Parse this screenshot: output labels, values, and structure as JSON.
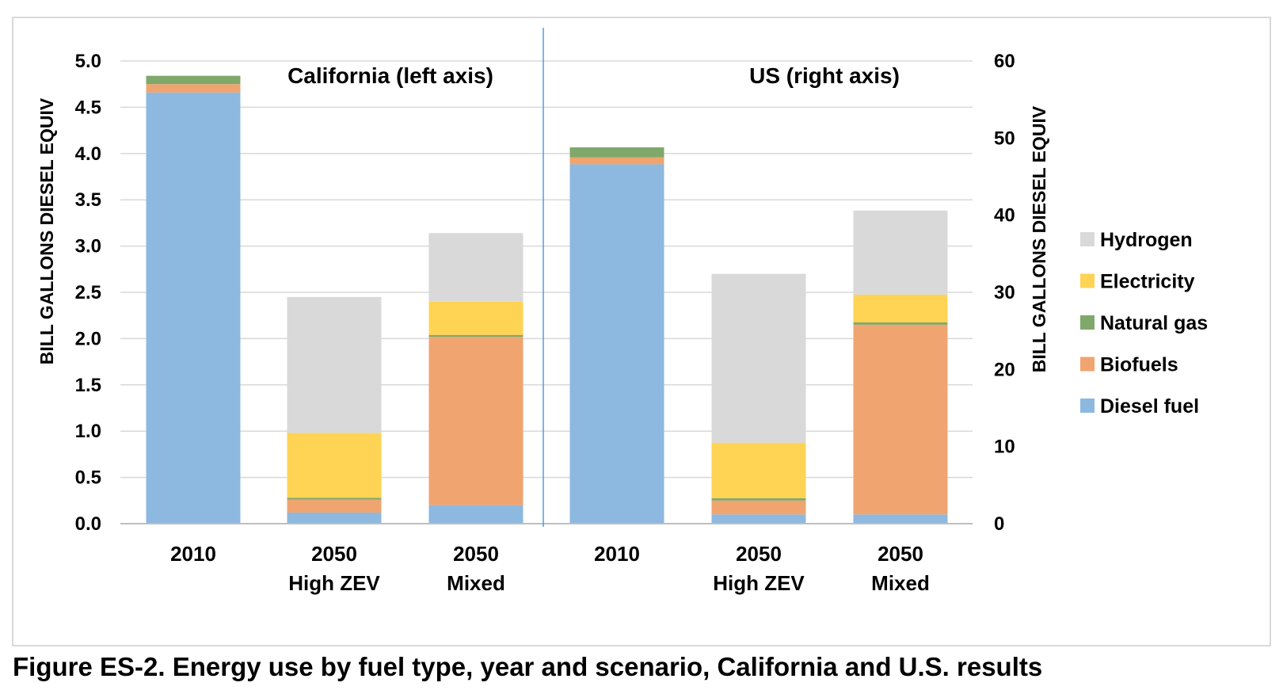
{
  "caption": "Figure ES-2. Energy use by fuel type, year and scenario, California and U.S. results",
  "chart_data": {
    "type": "bar",
    "stacked": true,
    "grid": true,
    "legend_position": "right",
    "colors": {
      "Hydrogen": "#d9d9d9",
      "Electricity": "#ffd353",
      "Natural gas": "#7fa86a",
      "Biofuels": "#f0a470",
      "Diesel fuel": "#8db8e0"
    },
    "legend": [
      "Hydrogen",
      "Electricity",
      "Natural gas",
      "Biofuels",
      "Diesel fuel"
    ],
    "stack_order": [
      "Diesel fuel",
      "Biofuels",
      "Natural gas",
      "Electricity",
      "Hydrogen"
    ],
    "panels": [
      {
        "title": "California (left axis)",
        "axis": "left",
        "ylabel": "BILL GALLONS DIESEL EQUIV",
        "ylim": [
          0,
          5
        ],
        "ticks": [
          "0.0",
          "0.5",
          "1.0",
          "1.5",
          "2.0",
          "2.5",
          "3.0",
          "3.5",
          "4.0",
          "4.5",
          "5.0"
        ],
        "categories": [
          [
            "2010"
          ],
          [
            "2050",
            "High ZEV"
          ],
          [
            "2050",
            "Mixed"
          ]
        ],
        "series": [
          {
            "name": "Diesel fuel",
            "values": [
              4.66,
              0.12,
              0.2
            ]
          },
          {
            "name": "Biofuels",
            "values": [
              0.09,
              0.14,
              1.82
            ]
          },
          {
            "name": "Natural gas",
            "values": [
              0.09,
              0.02,
              0.02
            ]
          },
          {
            "name": "Electricity",
            "values": [
              0,
              0.7,
              0.36
            ]
          },
          {
            "name": "Hydrogen",
            "values": [
              0,
              1.47,
              0.74
            ]
          }
        ]
      },
      {
        "title": "US (right axis)",
        "axis": "right",
        "ylabel": "BILL GALLONS DIESEL EQUIV",
        "ylim": [
          0,
          60
        ],
        "ticks": [
          "0",
          "10",
          "20",
          "30",
          "40",
          "50",
          "60"
        ],
        "categories": [
          [
            "2010"
          ],
          [
            "2050",
            "High ZEV"
          ],
          [
            "2050",
            "Mixed"
          ]
        ],
        "series": [
          {
            "name": "Diesel fuel",
            "values": [
              46.6,
              1.2,
              1.2
            ]
          },
          {
            "name": "Biofuels",
            "values": [
              0.9,
              1.8,
              24.6
            ]
          },
          {
            "name": "Natural gas",
            "values": [
              1.3,
              0.3,
              0.3
            ]
          },
          {
            "name": "Electricity",
            "values": [
              0,
              7.2,
              3.6
            ]
          },
          {
            "name": "Hydrogen",
            "values": [
              0,
              21.9,
              10.9
            ]
          }
        ]
      }
    ]
  }
}
